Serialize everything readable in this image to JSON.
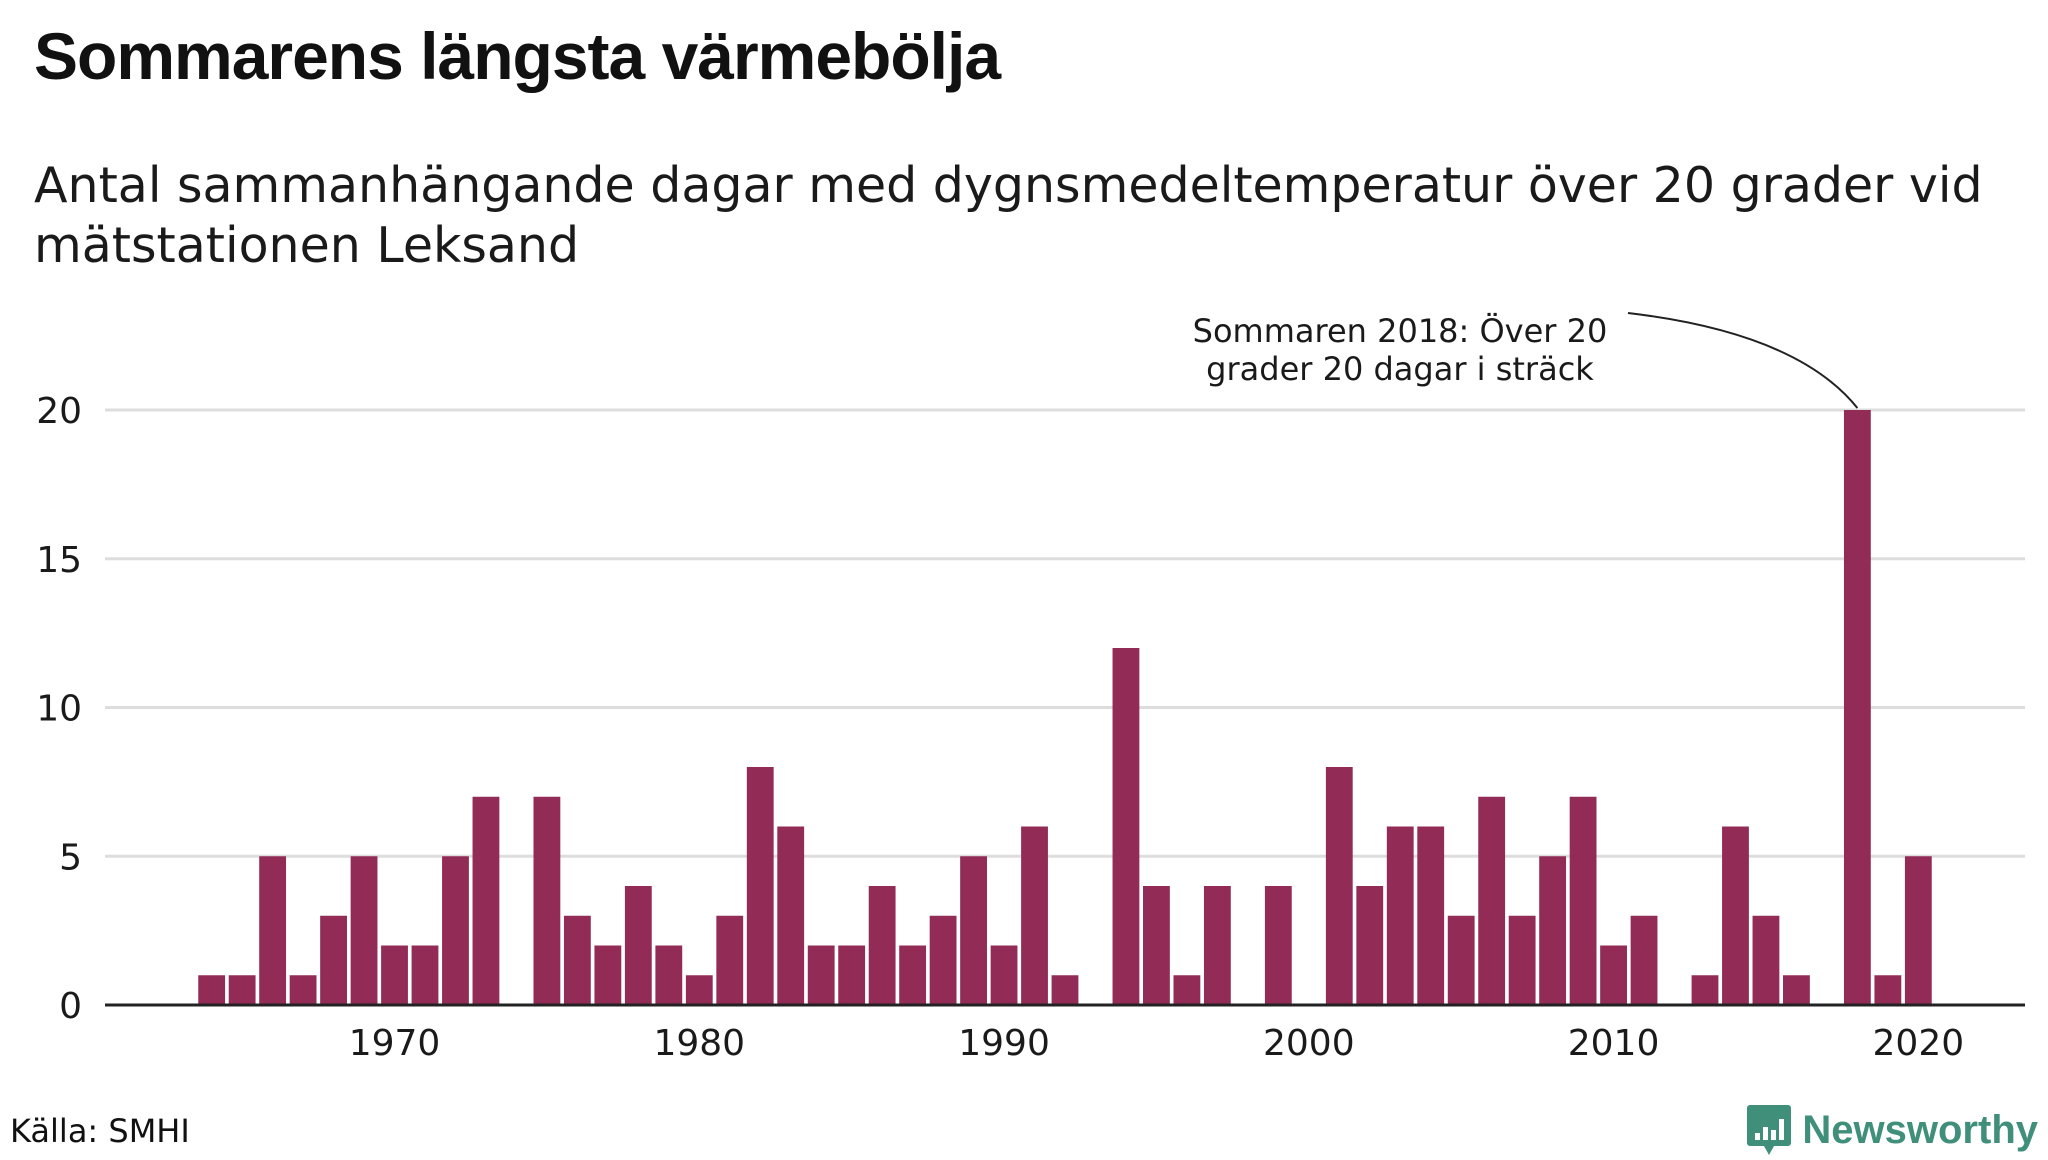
{
  "title": "Sommarens längsta värmebölja",
  "subtitle": "Antal sammanhängande dagar med dygnsmedeltemperatur över 20 grader vid mätstationen Leksand",
  "source": "Källa: SMHI",
  "brand": {
    "name": "Newsworthy",
    "icon": "bar-chart-icon",
    "color": "#3f8f7a"
  },
  "colors": {
    "bar": "#922b55",
    "grid": "#dddddd",
    "axis": "#222222",
    "text": "#1a1a1a"
  },
  "chart_data": {
    "type": "bar",
    "title": "Sommarens längsta värmebölja",
    "subtitle": "Antal sammanhängande dagar med dygnsmedeltemperatur över 20 grader vid mätstationen Leksand",
    "xlabel": "",
    "ylabel": "",
    "x": [
      1964,
      1965,
      1966,
      1967,
      1968,
      1969,
      1970,
      1971,
      1972,
      1973,
      1974,
      1975,
      1976,
      1977,
      1978,
      1979,
      1980,
      1981,
      1982,
      1983,
      1984,
      1985,
      1986,
      1987,
      1988,
      1989,
      1990,
      1991,
      1992,
      1993,
      1994,
      1995,
      1996,
      1997,
      1998,
      1999,
      2000,
      2001,
      2002,
      2003,
      2004,
      2005,
      2006,
      2007,
      2008,
      2009,
      2010,
      2011,
      2012,
      2013,
      2014,
      2015,
      2016,
      2017,
      2018,
      2019,
      2020
    ],
    "values": [
      1,
      1,
      5,
      1,
      3,
      5,
      2,
      2,
      5,
      7,
      0,
      7,
      3,
      2,
      4,
      2,
      1,
      3,
      8,
      6,
      2,
      2,
      4,
      2,
      3,
      5,
      2,
      6,
      1,
      0,
      12,
      4,
      1,
      4,
      0,
      4,
      0,
      8,
      4,
      6,
      6,
      3,
      7,
      3,
      5,
      7,
      2,
      3,
      0,
      1,
      6,
      3,
      1,
      0,
      20,
      1,
      5
    ],
    "xlim": [
      1960.5,
      2023.5
    ],
    "ylim": [
      0,
      20
    ],
    "y_ticks": [
      0,
      5,
      10,
      15,
      20
    ],
    "x_ticks": [
      1970,
      1980,
      1990,
      2000,
      2010,
      2020
    ],
    "grid": true,
    "legend": "none",
    "annotations": [
      {
        "x": 2018,
        "y": 20,
        "lines": [
          "Sommaren 2018: Över 20",
          "grader 20 dagar i sträck"
        ]
      }
    ]
  }
}
